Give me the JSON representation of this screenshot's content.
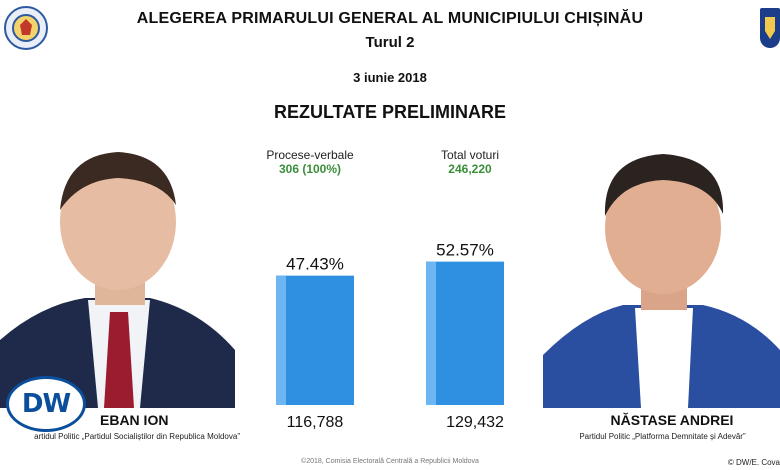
{
  "header": {
    "title": "ALEGEREA PRIMARULUI GENERAL AL MUNICIPIULUI CHIȘINĂU",
    "round": "Turul 2",
    "date": "3 iunie 2018",
    "results_title": "REZULTATE PRELIMINARE"
  },
  "stats": {
    "minutes_label": "Procese-verbale",
    "minutes_value": "306 (100%)",
    "total_votes_label": "Total voturi",
    "total_votes_value": "246,220",
    "value_color": "#3a8f3a"
  },
  "candidates": [
    {
      "name": "CEBAN ION",
      "visible_name": "EBAN ION",
      "party": "artidul Politic „Partidul Socialiștilor din Republica Moldova”",
      "votes": "116,788",
      "percent_label": "47.43%"
    },
    {
      "name": "NĂSTASE ANDREI",
      "visible_name": "NĂSTASE ANDREI",
      "party": "Partidul Politic „Platforma Demnitate și Adevăr”",
      "votes": "129,432",
      "percent_label": "52.57%"
    }
  ],
  "chart_data": {
    "type": "bar",
    "categories": [
      "CEBAN ION",
      "NĂSTASE ANDREI"
    ],
    "values": [
      47.43,
      52.57
    ],
    "data_labels": [
      "47.43%",
      "52.57%"
    ],
    "ylim": [
      0,
      55
    ],
    "bar_color": "#2f8fe0",
    "grid": false
  },
  "branding": {
    "dw_logo_text": "DW",
    "dw_color": "#0b4f9c"
  },
  "footer": {
    "source": "©2018, Comisia Electorală Centrală a Republicii Moldova",
    "credit": "© DW/E. Cova"
  },
  "icons": {
    "left_logo": "cec-emblem-icon",
    "right_logo": "chisinau-coat-of-arms-icon"
  }
}
